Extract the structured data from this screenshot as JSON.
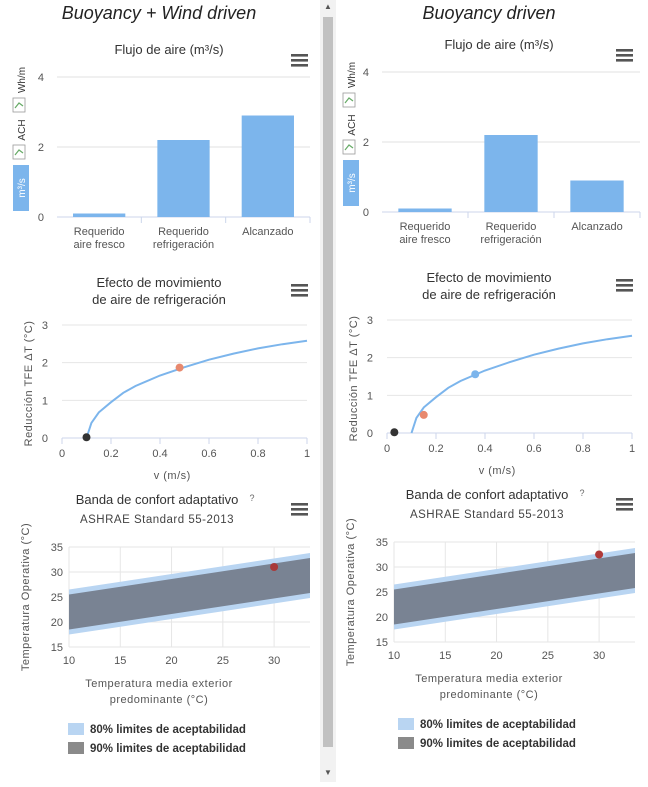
{
  "panels": [
    {
      "title": "Buoyancy + Wind driven",
      "airflow": {
        "title": "Flujo de aire (m³/s)",
        "buttons": [
          "m³/s",
          "ACH",
          "Wh/m"
        ],
        "chart_data": {
          "type": "bar",
          "title": "Flujo de aire (m³/s)",
          "categories": [
            [
              "Requerido",
              "aire fresco"
            ],
            [
              "Requerido",
              "refrigeración"
            ],
            [
              "Alcanzado"
            ]
          ],
          "values": [
            0.1,
            2.2,
            2.9
          ],
          "ylim": [
            0,
            4
          ],
          "yticks": [
            0,
            2,
            4
          ],
          "color": "#7cb5ec"
        }
      },
      "movement": {
        "title_lines": [
          "Efecto de movimiento",
          "de aire de refrigeración"
        ],
        "chart_data": {
          "type": "line",
          "xlabel": "v (m/s)",
          "ylabel": "Reducción TFE ΔT (°C)",
          "xlim": [
            0,
            1
          ],
          "ylim": [
            0,
            3
          ],
          "xticks": [
            "0",
            "0.2",
            "0.4",
            "0.6",
            "0.8",
            "1"
          ],
          "yticks": [
            "0",
            "1",
            "2",
            "3"
          ],
          "curve": [
            [
              0.1,
              0
            ],
            [
              0.12,
              0.4
            ],
            [
              0.15,
              0.68
            ],
            [
              0.2,
              0.95
            ],
            [
              0.25,
              1.2
            ],
            [
              0.3,
              1.38
            ],
            [
              0.4,
              1.66
            ],
            [
              0.5,
              1.88
            ],
            [
              0.6,
              2.08
            ],
            [
              0.7,
              2.24
            ],
            [
              0.8,
              2.38
            ],
            [
              0.9,
              2.49
            ],
            [
              1.0,
              2.58
            ]
          ],
          "points": [
            {
              "x": 0.1,
              "y": 0.02,
              "color": "#333333"
            },
            {
              "x": 0.48,
              "y": 1.87,
              "color": "#e8896e"
            }
          ],
          "line_color": "#7cb5ec"
        }
      },
      "comfort": {
        "title": "Banda de confort adaptativo",
        "help": "?",
        "subtitle": "ASHRAE Standard 55-2013",
        "chart_data": {
          "type": "area",
          "xlabel_lines": [
            "Temperatura media exterior",
            "predominante (°C)"
          ],
          "ylabel": "Temperatura Operativa (°C)",
          "xlim": [
            10,
            33.5
          ],
          "ylim": [
            15,
            35
          ],
          "xticks": [
            "10",
            "15",
            "20",
            "25",
            "30"
          ],
          "yticks": [
            "15",
            "20",
            "25",
            "30",
            "35"
          ],
          "band80": [
            [
              10,
              17.5,
              26.5
            ],
            [
              33.5,
              24.8,
              33.8
            ]
          ],
          "band90": [
            [
              10,
              18.5,
              25.5
            ],
            [
              33.5,
              25.8,
              32.8
            ]
          ],
          "points": [
            {
              "x": 30,
              "y": 31,
              "color": "#a83a3a"
            }
          ]
        },
        "legend": [
          "80% limites de aceptabilidad",
          "90% limites de aceptabilidad"
        ]
      }
    },
    {
      "title": "Buoyancy driven",
      "airflow": {
        "title": "Flujo de aire (m³/s)",
        "buttons": [
          "m³/s",
          "ACH",
          "Wh/m"
        ],
        "chart_data": {
          "type": "bar",
          "title": "Flujo de aire (m³/s)",
          "categories": [
            [
              "Requerido",
              "aire fresco"
            ],
            [
              "Requerido",
              "refrigeración"
            ],
            [
              "Alcanzado"
            ]
          ],
          "values": [
            0.1,
            2.2,
            0.9
          ],
          "ylim": [
            0,
            4
          ],
          "yticks": [
            0,
            2,
            4
          ],
          "color": "#7cb5ec"
        }
      },
      "movement": {
        "title_lines": [
          "Efecto de movimiento",
          "de aire de refrigeración"
        ],
        "chart_data": {
          "type": "line",
          "xlabel": "v (m/s)",
          "ylabel": "Reducción TFE ΔT (°C)",
          "xlim": [
            0,
            1
          ],
          "ylim": [
            0,
            3
          ],
          "xticks": [
            "0",
            "0.2",
            "0.4",
            "0.6",
            "0.8",
            "1"
          ],
          "yticks": [
            "0",
            "1",
            "2",
            "3"
          ],
          "curve": [
            [
              0.1,
              0
            ],
            [
              0.12,
              0.4
            ],
            [
              0.15,
              0.68
            ],
            [
              0.2,
              0.95
            ],
            [
              0.25,
              1.2
            ],
            [
              0.3,
              1.38
            ],
            [
              0.4,
              1.66
            ],
            [
              0.5,
              1.88
            ],
            [
              0.6,
              2.08
            ],
            [
              0.7,
              2.24
            ],
            [
              0.8,
              2.38
            ],
            [
              0.9,
              2.49
            ],
            [
              1.0,
              2.58
            ]
          ],
          "points": [
            {
              "x": 0.03,
              "y": 0.02,
              "color": "#333333"
            },
            {
              "x": 0.15,
              "y": 0.48,
              "color": "#e8896e"
            },
            {
              "x": 0.36,
              "y": 1.56,
              "color": "#7cb5ec"
            }
          ],
          "line_color": "#7cb5ec"
        }
      },
      "comfort": {
        "title": "Banda de confort adaptativo",
        "help": "?",
        "subtitle": "ASHRAE Standard 55-2013",
        "chart_data": {
          "type": "area",
          "xlabel_lines": [
            "Temperatura media exterior",
            "predominante (°C)"
          ],
          "ylabel": "Temperatura Operativa (°C)",
          "xlim": [
            10,
            33.5
          ],
          "ylim": [
            15,
            35
          ],
          "xticks": [
            "10",
            "15",
            "20",
            "25",
            "30"
          ],
          "yticks": [
            "15",
            "20",
            "25",
            "30",
            "35"
          ],
          "band80": [
            [
              10,
              17.5,
              26.5
            ],
            [
              33.5,
              24.8,
              33.8
            ]
          ],
          "band90": [
            [
              10,
              18.5,
              25.5
            ],
            [
              33.5,
              25.8,
              32.8
            ]
          ],
          "points": [
            {
              "x": 30,
              "y": 32.5,
              "color": "#b03a3a"
            }
          ]
        },
        "legend": [
          "80% limites de aceptabilidad",
          "90% limites de aceptabilidad"
        ]
      }
    }
  ]
}
